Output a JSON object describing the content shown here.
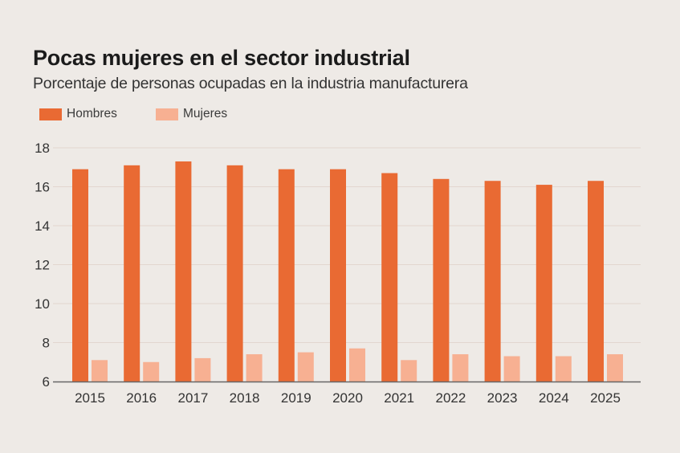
{
  "header": {
    "title": "Pocas mujeres en el sector industrial",
    "subtitle": "Porcentaje de personas ocupadas en la industria manufacturera"
  },
  "colors": {
    "background": "#EEEAE6",
    "hombres": "#E96A33",
    "mujeres": "#F7B092",
    "gridline": "#E2D6CF",
    "axis": "#666666"
  },
  "chart_data": {
    "type": "bar",
    "title": "Pocas mujeres en el sector industrial",
    "subtitle": "Porcentaje de personas ocupadas en la industria manufacturera",
    "xlabel": "",
    "ylabel": "",
    "categories": [
      "2015",
      "2016",
      "2017",
      "2018",
      "2019",
      "2020",
      "2021",
      "2022",
      "2023",
      "2024",
      "2025"
    ],
    "series": [
      {
        "name": "Hombres",
        "color": "#E96A33",
        "values": [
          16.9,
          17.1,
          17.3,
          17.1,
          16.9,
          16.9,
          16.7,
          16.4,
          16.3,
          16.1,
          16.3
        ]
      },
      {
        "name": "Mujeres",
        "color": "#F7B092",
        "values": [
          7.1,
          7.0,
          7.2,
          7.4,
          7.5,
          7.7,
          7.1,
          7.4,
          7.3,
          7.3,
          7.4
        ]
      }
    ],
    "ylim": [
      6,
      18
    ],
    "yticks": [
      6,
      8,
      10,
      12,
      14,
      16,
      18
    ],
    "grid": true,
    "legend_position": "top-left"
  }
}
